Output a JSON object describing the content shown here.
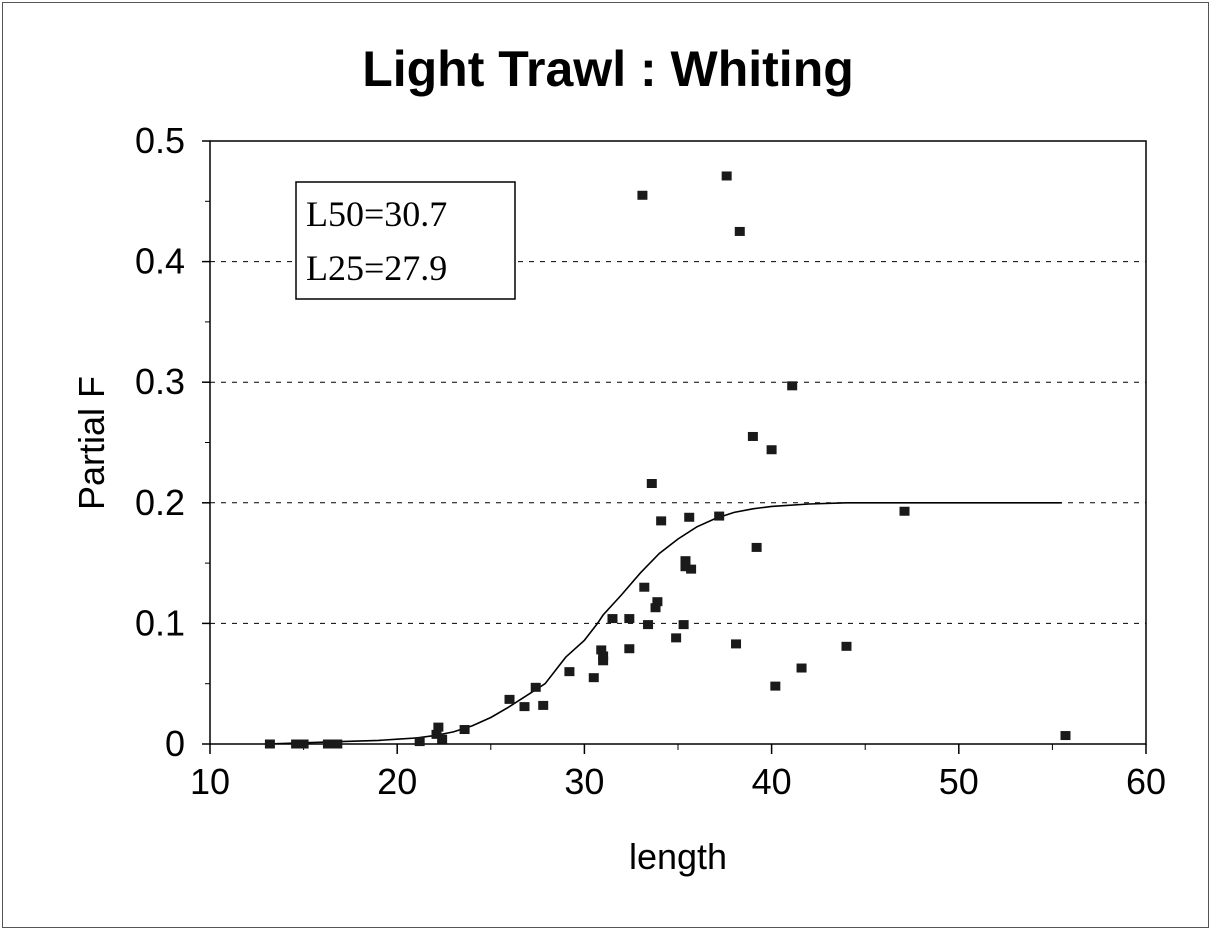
{
  "chart_data": {
    "type": "scatter",
    "title": "Light Trawl : Whiting",
    "xlabel": "length",
    "ylabel": "Partial F",
    "xlim": [
      10,
      60
    ],
    "ylim": [
      0,
      0.5
    ],
    "x_ticks": [
      10,
      20,
      30,
      40,
      50,
      60
    ],
    "y_ticks": [
      0,
      0.1,
      0.2,
      0.3,
      0.4,
      0.5
    ],
    "y_tick_labels": [
      "0",
      "0.1",
      "0.2",
      "0.3",
      "0.4",
      "0.5"
    ],
    "grid": "horizontal dashed",
    "annotations": [
      "L50=30.7",
      "L25=27.9"
    ],
    "series": [
      {
        "type": "scatter",
        "x": [
          13.2,
          14.6,
          15.0,
          16.3,
          16.8,
          21.2,
          22.1,
          22.2,
          22.4,
          23.6,
          26.0,
          26.8,
          27.4,
          27.8,
          29.2,
          30.5,
          30.9,
          31.0,
          31.0,
          31.5,
          32.4,
          32.4,
          33.1,
          33.2,
          33.4,
          33.6,
          33.8,
          33.9,
          34.1,
          34.9,
          35.3,
          35.4,
          35.4,
          35.6,
          35.7,
          37.2,
          37.6,
          38.1,
          38.3,
          39.0,
          39.2,
          40.0,
          40.2,
          41.1,
          41.6,
          44.0,
          47.1,
          55.7
        ],
        "y": [
          0.0,
          0.0,
          0.0,
          0.0,
          0.0,
          0.002,
          0.008,
          0.014,
          0.004,
          0.012,
          0.037,
          0.031,
          0.047,
          0.032,
          0.06,
          0.055,
          0.078,
          0.073,
          0.069,
          0.104,
          0.079,
          0.104,
          0.455,
          0.13,
          0.099,
          0.216,
          0.113,
          0.118,
          0.185,
          0.088,
          0.099,
          0.152,
          0.147,
          0.188,
          0.145,
          0.189,
          0.471,
          0.083,
          0.425,
          0.255,
          0.163,
          0.244,
          0.048,
          0.297,
          0.063,
          0.081,
          0.193,
          0.007
        ]
      },
      {
        "type": "line",
        "x": [
          13,
          15,
          17,
          19,
          20,
          21,
          22,
          23,
          24,
          25,
          26,
          27,
          27.9,
          29,
          30,
          30.7,
          31,
          32,
          33,
          34,
          35,
          36,
          37,
          38,
          39,
          40,
          42,
          44,
          46,
          48,
          50,
          52,
          55.5
        ],
        "y": [
          0.0,
          0.001,
          0.002,
          0.003,
          0.004,
          0.005,
          0.007,
          0.01,
          0.015,
          0.022,
          0.031,
          0.041,
          0.05,
          0.072,
          0.086,
          0.1,
          0.107,
          0.124,
          0.142,
          0.158,
          0.17,
          0.18,
          0.187,
          0.192,
          0.195,
          0.197,
          0.199,
          0.2,
          0.2,
          0.2,
          0.2,
          0.2,
          0.2
        ]
      }
    ]
  }
}
